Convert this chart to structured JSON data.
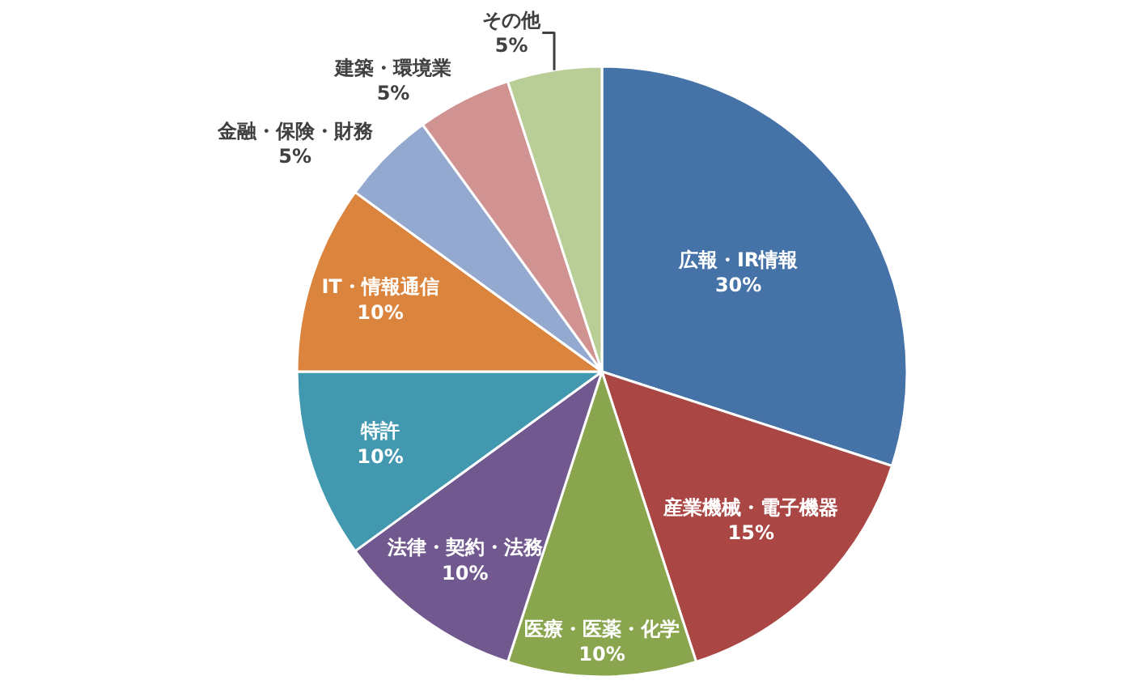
{
  "chart_data": {
    "type": "pie",
    "categories": [
      "広報・IR情報",
      "産業機械・電子機器",
      "医療・医薬・化学",
      "法律・契約・法務",
      "特許",
      "IT・情報通信",
      "金融・保険・財務",
      "建築・環境業",
      "その他"
    ],
    "values": [
      30,
      15,
      10,
      10,
      10,
      10,
      5,
      5,
      5
    ],
    "value_labels": [
      "30%",
      "15%",
      "10%",
      "10%",
      "10%",
      "10%",
      "5%",
      "5%",
      "5%"
    ],
    "colors": [
      "#4572a7",
      "#aa4643",
      "#89a54e",
      "#71588f",
      "#4198af",
      "#db843d",
      "#93a9cf",
      "#d19392",
      "#b9cd96"
    ]
  }
}
